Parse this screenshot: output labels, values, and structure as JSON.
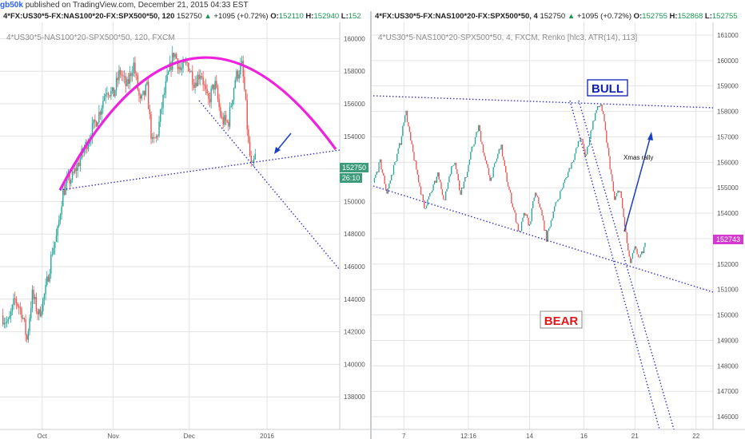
{
  "header": {
    "author": "gb50k",
    "published_text": "published on TradingView.com, December 21, 2015 04:33 EST"
  },
  "left_chart": {
    "legend": {
      "symbol": "4*FX:US30*5-FX:NAS100*20-FX:SPX500*50, 120",
      "last": "152750",
      "change": "+1095 (+0.72%)",
      "open_label": "O:",
      "open": "152110",
      "high_label": "H:",
      "high": "152940",
      "low_label": "L:",
      "low": "152"
    },
    "watermark": "4*US30*5-NAS100*20-SPX500*50, 120, FXCM",
    "price_tag": "152750",
    "timer_tag": "26:10"
  },
  "right_chart": {
    "legend": {
      "symbol": "4*FX:US30*5-FX:NAS100*20-FX:SPX500*50, 4",
      "last": "152750",
      "change": "+1095 (+0.72%)",
      "open_label": "O:",
      "open": "152755",
      "high_label": "H:",
      "high": "152868",
      "low_label": "L:",
      "low": "152755"
    },
    "watermark": "4*US30*5-NAS100*20-SPX500*50, 4, FXCM, Renko [hlc3, ATR(14), 113]",
    "price_tag": "152743",
    "annotations": {
      "bull": "BULL",
      "bear": "BEAR",
      "xmas": "Xmas rally"
    }
  },
  "colors": {
    "up": "#26a69a",
    "down": "#ef5350",
    "trendline": "#3333cc",
    "arc": "#ee22dd",
    "arrow": "#1a3fbf",
    "bull": "#0d1fb5",
    "bear": "#e0161a",
    "price_tag": "#3b9b7b",
    "price_tag_right": "#d43ad0",
    "watermark": "#8c8c8c",
    "grid": "#e3e3e3"
  },
  "chart_data": [
    {
      "type": "candlestick",
      "name": "left",
      "title": "4*US30*5-NAS100*20-SPX500*50, 120, FXCM",
      "y_ticks": [
        160000,
        158000,
        156000,
        154000,
        152000,
        150000,
        148000,
        146000,
        144000,
        142000,
        140000,
        138000
      ],
      "ylim": [
        136000,
        161000
      ],
      "x_ticks": [
        {
          "label": "Oct",
          "t": 0.12
        },
        {
          "label": "Nov",
          "t": 0.33
        },
        {
          "label": "Dec",
          "t": 0.555
        },
        {
          "label": "2016",
          "t": 0.785
        }
      ],
      "price_path": [
        [
          0.0,
          143000
        ],
        [
          0.02,
          142500
        ],
        [
          0.04,
          144000
        ],
        [
          0.06,
          143200
        ],
        [
          0.075,
          141500
        ],
        [
          0.09,
          144300
        ],
        [
          0.11,
          143000
        ],
        [
          0.13,
          144500
        ],
        [
          0.15,
          147000
        ],
        [
          0.165,
          148000
        ],
        [
          0.18,
          150500
        ],
        [
          0.195,
          151200
        ],
        [
          0.21,
          151500
        ],
        [
          0.23,
          152500
        ],
        [
          0.25,
          153500
        ],
        [
          0.27,
          154500
        ],
        [
          0.29,
          155500
        ],
        [
          0.31,
          157000
        ],
        [
          0.33,
          156500
        ],
        [
          0.35,
          158000
        ],
        [
          0.37,
          157000
        ],
        [
          0.39,
          158500
        ],
        [
          0.41,
          156000
        ],
        [
          0.43,
          157000
        ],
        [
          0.445,
          153500
        ],
        [
          0.46,
          154000
        ],
        [
          0.475,
          156000
        ],
        [
          0.49,
          157500
        ],
        [
          0.51,
          159200
        ],
        [
          0.53,
          158000
        ],
        [
          0.55,
          158500
        ],
        [
          0.57,
          157300
        ],
        [
          0.59,
          158000
        ],
        [
          0.61,
          156000
        ],
        [
          0.63,
          157300
        ],
        [
          0.65,
          155000
        ],
        [
          0.67,
          154800
        ],
        [
          0.69,
          157500
        ],
        [
          0.71,
          158400
        ],
        [
          0.72,
          156500
        ],
        [
          0.73,
          153500
        ],
        [
          0.74,
          151800
        ],
        [
          0.75,
          152750
        ]
      ],
      "last_price": 152750
    },
    {
      "type": "renko",
      "name": "right",
      "title": "4*US30*5-NAS100*20-SPX500*50, 4, FXCM, Renko [hlc3, ATR(14), 113]",
      "y_ticks": [
        161000,
        160000,
        159000,
        158000,
        157000,
        156000,
        155000,
        154000,
        153000,
        152000,
        151000,
        150000,
        149000,
        148000,
        147000,
        146000
      ],
      "ylim": [
        145500,
        161500
      ],
      "x_ticks": [
        {
          "label": "7",
          "t": 0.09
        },
        {
          "label": "12:16",
          "t": 0.28
        },
        {
          "label": "14",
          "t": 0.46
        },
        {
          "label": "16",
          "t": 0.62
        },
        {
          "label": "21",
          "t": 0.77
        },
        {
          "label": "22",
          "t": 0.95
        }
      ],
      "price_path": [
        [
          0.0,
          155200
        ],
        [
          0.02,
          156000
        ],
        [
          0.04,
          154800
        ],
        [
          0.06,
          155800
        ],
        [
          0.08,
          156800
        ],
        [
          0.095,
          158100
        ],
        [
          0.11,
          156800
        ],
        [
          0.13,
          155500
        ],
        [
          0.15,
          154200
        ],
        [
          0.17,
          154800
        ],
        [
          0.19,
          155500
        ],
        [
          0.21,
          154500
        ],
        [
          0.225,
          155600
        ],
        [
          0.24,
          156100
        ],
        [
          0.255,
          154800
        ],
        [
          0.27,
          155300
        ],
        [
          0.29,
          156500
        ],
        [
          0.31,
          157400
        ],
        [
          0.33,
          156000
        ],
        [
          0.345,
          155300
        ],
        [
          0.36,
          156000
        ],
        [
          0.375,
          156700
        ],
        [
          0.39,
          155500
        ],
        [
          0.41,
          154300
        ],
        [
          0.43,
          153200
        ],
        [
          0.445,
          154000
        ],
        [
          0.46,
          153500
        ],
        [
          0.475,
          154800
        ],
        [
          0.49,
          154300
        ],
        [
          0.51,
          153000
        ],
        [
          0.53,
          154100
        ],
        [
          0.55,
          154800
        ],
        [
          0.57,
          155500
        ],
        [
          0.59,
          156200
        ],
        [
          0.61,
          157000
        ],
        [
          0.625,
          156200
        ],
        [
          0.64,
          157200
        ],
        [
          0.655,
          158000
        ],
        [
          0.67,
          158300
        ],
        [
          0.68,
          157500
        ],
        [
          0.695,
          156000
        ],
        [
          0.71,
          154500
        ],
        [
          0.725,
          155000
        ],
        [
          0.74,
          153500
        ],
        [
          0.755,
          152000
        ],
        [
          0.77,
          152600
        ],
        [
          0.785,
          152200
        ],
        [
          0.8,
          152743
        ]
      ],
      "last_price": 152743
    }
  ]
}
